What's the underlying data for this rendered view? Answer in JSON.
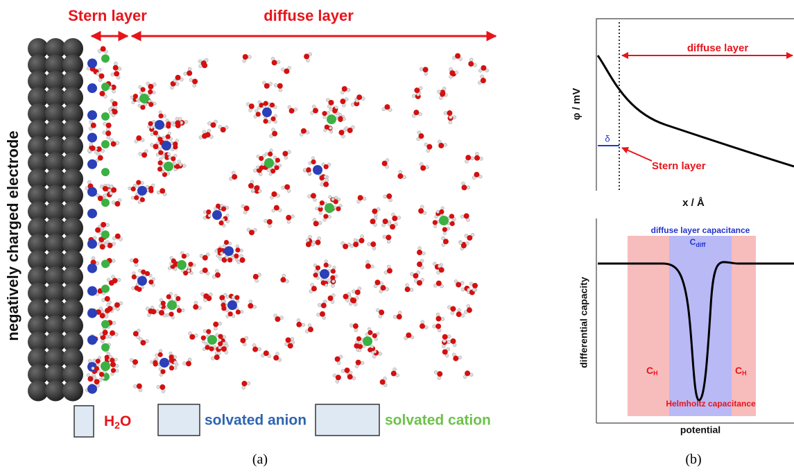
{
  "panel_a": {
    "stern_label": "Stern layer",
    "diffuse_label": "diffuse layer",
    "electrode_label": "negatively charged electrode",
    "legend": {
      "water": {
        "main": "H",
        "sub": "2",
        "tail": "O"
      },
      "anion": "solvated anion",
      "cation": "solvated cation"
    },
    "caption": "(a)"
  },
  "panel_b": {
    "top": {
      "diffuse_label": "diffuse layer",
      "y_label": "φ / mV",
      "delta": "δ",
      "stern_label": "Stern layer",
      "x_label": "x / Å"
    },
    "bottom": {
      "diffuse_cap": "diffuse layer capacitance",
      "c_diff": {
        "main": "C",
        "sub": "diff"
      },
      "c_h_left": {
        "main": "C",
        "sub": "H"
      },
      "c_h_right": {
        "main": "C",
        "sub": "H"
      },
      "helmholtz": "Helmholtz capacitance",
      "y_label": "differential capacity",
      "x_label": "potential"
    },
    "caption": "(b)"
  }
}
